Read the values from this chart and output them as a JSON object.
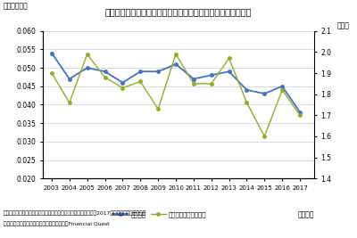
{
  "title": "都道府県別人口一人当たりの税収格差（清算後の地方消費税）",
  "subtitle": "（図表１２）",
  "years": [
    2003,
    2004,
    2005,
    2006,
    2007,
    2008,
    2009,
    2010,
    2011,
    2012,
    2013,
    2014,
    2015,
    2016,
    2017
  ],
  "gini": [
    0.054,
    0.047,
    0.05,
    0.049,
    0.046,
    0.049,
    0.049,
    0.051,
    0.047,
    0.048,
    0.049,
    0.044,
    0.043,
    0.045,
    0.038
  ],
  "ratio": [
    1.9,
    1.76,
    1.99,
    1.88,
    1.83,
    1.86,
    1.73,
    1.99,
    1.85,
    1.85,
    1.97,
    1.76,
    1.6,
    1.82,
    1.7
  ],
  "gini_color": "#4472C4",
  "ratio_color": "#8DAF27",
  "ylim_left": [
    0.02,
    0.06
  ],
  "ylim_right": [
    1.4,
    2.1
  ],
  "yticks_left": [
    0.02,
    0.025,
    0.03,
    0.035,
    0.04,
    0.045,
    0.05,
    0.055,
    0.06
  ],
  "yticks_right": [
    1.4,
    1.5,
    1.6,
    1.7,
    1.8,
    1.9,
    2.0,
    2.1
  ],
  "ylabel_right": "（倍）",
  "xlabel": "（年度）",
  "legend_gini": "ジニ係数",
  "legend_ratio": "最大／最小（右目盛）",
  "note1": "（注意）地方消費税は、近年の税制改正の影響を見極めるため、2017年度までを対象とした。",
  "note2": "（資料）総務省「地方財政統計年報」、日経Financial Quest",
  "background_color": "#ffffff",
  "grid_color": "#cccccc"
}
